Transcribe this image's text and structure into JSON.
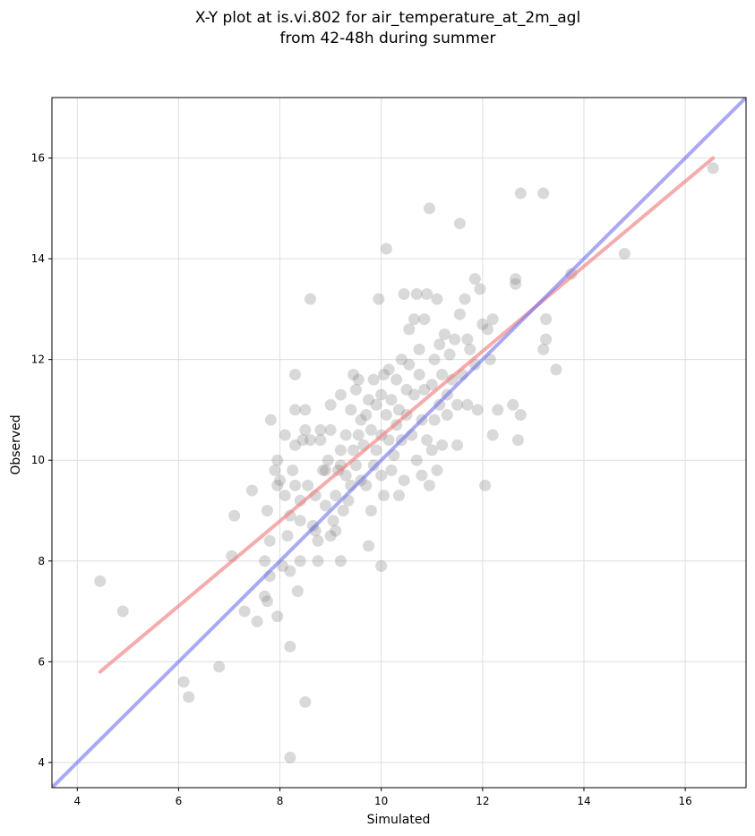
{
  "chart_data": {
    "type": "scatter",
    "title_line1": "X-Y plot at is.vi.802 for air_temperature_at_2m_agl",
    "title_line2": "from 42-48h during summer",
    "xlabel": "Simulated",
    "ylabel": "Observed",
    "xlim": [
      3.5,
      17.2
    ],
    "ylim": [
      3.5,
      17.2
    ],
    "xticks": [
      "4",
      "6",
      "8",
      "10",
      "12",
      "14",
      "16"
    ],
    "yticks": [
      "4",
      "6",
      "8",
      "10",
      "12",
      "14",
      "16"
    ],
    "xtick_values": [
      4,
      6,
      8,
      10,
      12,
      14,
      16
    ],
    "ytick_values": [
      4,
      6,
      8,
      10,
      12,
      14,
      16
    ],
    "grid": true,
    "point_color": "#808080",
    "points": [
      [
        4.45,
        7.6
      ],
      [
        4.9,
        7.0
      ],
      [
        6.1,
        5.6
      ],
      [
        6.2,
        5.3
      ],
      [
        6.8,
        5.9
      ],
      [
        7.05,
        8.1
      ],
      [
        7.1,
        8.9
      ],
      [
        7.3,
        7.0
      ],
      [
        7.45,
        9.4
      ],
      [
        7.55,
        6.8
      ],
      [
        7.7,
        8.0
      ],
      [
        7.7,
        7.3
      ],
      [
        7.75,
        9.0
      ],
      [
        7.75,
        7.2
      ],
      [
        7.8,
        8.4
      ],
      [
        7.8,
        7.7
      ],
      [
        7.82,
        10.8
      ],
      [
        7.9,
        9.8
      ],
      [
        7.95,
        6.9
      ],
      [
        7.95,
        9.5
      ],
      [
        7.95,
        10.0
      ],
      [
        8.0,
        9.6
      ],
      [
        8.05,
        7.9
      ],
      [
        8.1,
        9.3
      ],
      [
        8.1,
        10.5
      ],
      [
        8.15,
        8.5
      ],
      [
        8.2,
        6.3
      ],
      [
        8.2,
        4.1
      ],
      [
        8.2,
        7.8
      ],
      [
        8.2,
        8.9
      ],
      [
        8.25,
        9.8
      ],
      [
        8.3,
        9.5
      ],
      [
        8.3,
        11.7
      ],
      [
        8.3,
        11.0
      ],
      [
        8.3,
        10.3
      ],
      [
        8.35,
        7.4
      ],
      [
        8.4,
        8.8
      ],
      [
        8.4,
        8.0
      ],
      [
        8.4,
        9.2
      ],
      [
        8.45,
        10.4
      ],
      [
        8.5,
        11.0
      ],
      [
        8.5,
        10.6
      ],
      [
        8.5,
        5.2
      ],
      [
        8.55,
        9.5
      ],
      [
        8.6,
        13.2
      ],
      [
        8.6,
        10.4
      ],
      [
        8.65,
        8.7
      ],
      [
        8.7,
        9.3
      ],
      [
        8.7,
        8.6
      ],
      [
        8.75,
        8.0
      ],
      [
        8.75,
        8.4
      ],
      [
        8.8,
        10.4
      ],
      [
        8.8,
        10.6
      ],
      [
        8.85,
        9.8
      ],
      [
        8.9,
        9.1
      ],
      [
        8.9,
        9.8
      ],
      [
        8.95,
        10.0
      ],
      [
        9.0,
        11.1
      ],
      [
        9.0,
        10.6
      ],
      [
        9.0,
        8.5
      ],
      [
        9.05,
        8.8
      ],
      [
        9.1,
        9.3
      ],
      [
        9.1,
        8.6
      ],
      [
        9.15,
        9.8
      ],
      [
        9.2,
        11.3
      ],
      [
        9.2,
        10.2
      ],
      [
        9.2,
        8.0
      ],
      [
        9.2,
        9.9
      ],
      [
        9.25,
        9.0
      ],
      [
        9.3,
        9.7
      ],
      [
        9.3,
        10.5
      ],
      [
        9.35,
        9.2
      ],
      [
        9.4,
        9.5
      ],
      [
        9.4,
        11.0
      ],
      [
        9.45,
        10.2
      ],
      [
        9.45,
        11.7
      ],
      [
        9.5,
        11.4
      ],
      [
        9.5,
        9.9
      ],
      [
        9.55,
        10.5
      ],
      [
        9.55,
        11.6
      ],
      [
        9.6,
        10.8
      ],
      [
        9.6,
        9.6
      ],
      [
        9.65,
        10.3
      ],
      [
        9.7,
        10.9
      ],
      [
        9.7,
        9.5
      ],
      [
        9.75,
        11.2
      ],
      [
        9.75,
        8.3
      ],
      [
        9.8,
        9.0
      ],
      [
        9.8,
        10.6
      ],
      [
        9.85,
        11.6
      ],
      [
        9.85,
        9.9
      ],
      [
        9.9,
        10.2
      ],
      [
        9.9,
        11.1
      ],
      [
        9.95,
        13.2
      ],
      [
        10.0,
        10.5
      ],
      [
        10.0,
        9.7
      ],
      [
        10.0,
        11.3
      ],
      [
        10.0,
        7.9
      ],
      [
        10.05,
        11.7
      ],
      [
        10.05,
        9.3
      ],
      [
        10.1,
        10.9
      ],
      [
        10.1,
        14.2
      ],
      [
        10.15,
        11.8
      ],
      [
        10.15,
        10.4
      ],
      [
        10.2,
        9.8
      ],
      [
        10.2,
        11.2
      ],
      [
        10.25,
        10.1
      ],
      [
        10.3,
        10.7
      ],
      [
        10.3,
        11.6
      ],
      [
        10.35,
        9.3
      ],
      [
        10.35,
        11.0
      ],
      [
        10.4,
        12.0
      ],
      [
        10.4,
        10.4
      ],
      [
        10.45,
        13.3
      ],
      [
        10.45,
        9.6
      ],
      [
        10.5,
        11.4
      ],
      [
        10.5,
        10.9
      ],
      [
        10.55,
        11.9
      ],
      [
        10.55,
        12.6
      ],
      [
        10.6,
        10.5
      ],
      [
        10.65,
        11.3
      ],
      [
        10.65,
        12.8
      ],
      [
        10.7,
        10.0
      ],
      [
        10.7,
        13.3
      ],
      [
        10.75,
        11.7
      ],
      [
        10.75,
        12.2
      ],
      [
        10.8,
        10.8
      ],
      [
        10.8,
        9.7
      ],
      [
        10.85,
        12.8
      ],
      [
        10.85,
        11.4
      ],
      [
        10.9,
        13.3
      ],
      [
        10.9,
        10.4
      ],
      [
        10.95,
        9.5
      ],
      [
        10.95,
        15.0
      ],
      [
        11.0,
        11.5
      ],
      [
        11.0,
        10.2
      ],
      [
        11.05,
        12.0
      ],
      [
        11.05,
        10.8
      ],
      [
        11.1,
        13.2
      ],
      [
        11.1,
        9.8
      ],
      [
        11.15,
        11.1
      ],
      [
        11.15,
        12.3
      ],
      [
        11.2,
        10.3
      ],
      [
        11.2,
        11.7
      ],
      [
        11.25,
        12.5
      ],
      [
        11.3,
        11.3
      ],
      [
        11.3,
        10.9
      ],
      [
        11.35,
        12.1
      ],
      [
        11.4,
        11.6
      ],
      [
        11.45,
        12.4
      ],
      [
        11.5,
        11.1
      ],
      [
        11.5,
        10.3
      ],
      [
        11.55,
        14.7
      ],
      [
        11.55,
        12.9
      ],
      [
        11.6,
        11.7
      ],
      [
        11.65,
        13.2
      ],
      [
        11.7,
        12.4
      ],
      [
        11.7,
        11.1
      ],
      [
        11.75,
        12.2
      ],
      [
        11.85,
        13.6
      ],
      [
        11.85,
        11.9
      ],
      [
        11.9,
        11.0
      ],
      [
        11.95,
        13.4
      ],
      [
        12.0,
        12.7
      ],
      [
        12.05,
        9.5
      ],
      [
        12.1,
        12.6
      ],
      [
        12.15,
        12.0
      ],
      [
        12.2,
        12.8
      ],
      [
        12.2,
        10.5
      ],
      [
        12.3,
        11.0
      ],
      [
        12.6,
        11.1
      ],
      [
        12.65,
        13.6
      ],
      [
        12.65,
        13.5
      ],
      [
        12.7,
        10.4
      ],
      [
        12.75,
        10.9
      ],
      [
        12.75,
        15.3
      ],
      [
        13.2,
        15.3
      ],
      [
        13.2,
        12.2
      ],
      [
        13.25,
        12.8
      ],
      [
        13.25,
        12.4
      ],
      [
        13.45,
        11.8
      ],
      [
        13.75,
        13.7
      ],
      [
        14.8,
        14.1
      ],
      [
        16.55,
        15.8
      ]
    ],
    "fit_line": {
      "color": "#f08080",
      "x": [
        4.45,
        16.55
      ],
      "y": [
        5.8,
        16.0
      ]
    },
    "identity_line": {
      "color": "#7070ee",
      "x": [
        3.5,
        17.2
      ],
      "y": [
        3.5,
        17.2
      ]
    }
  }
}
